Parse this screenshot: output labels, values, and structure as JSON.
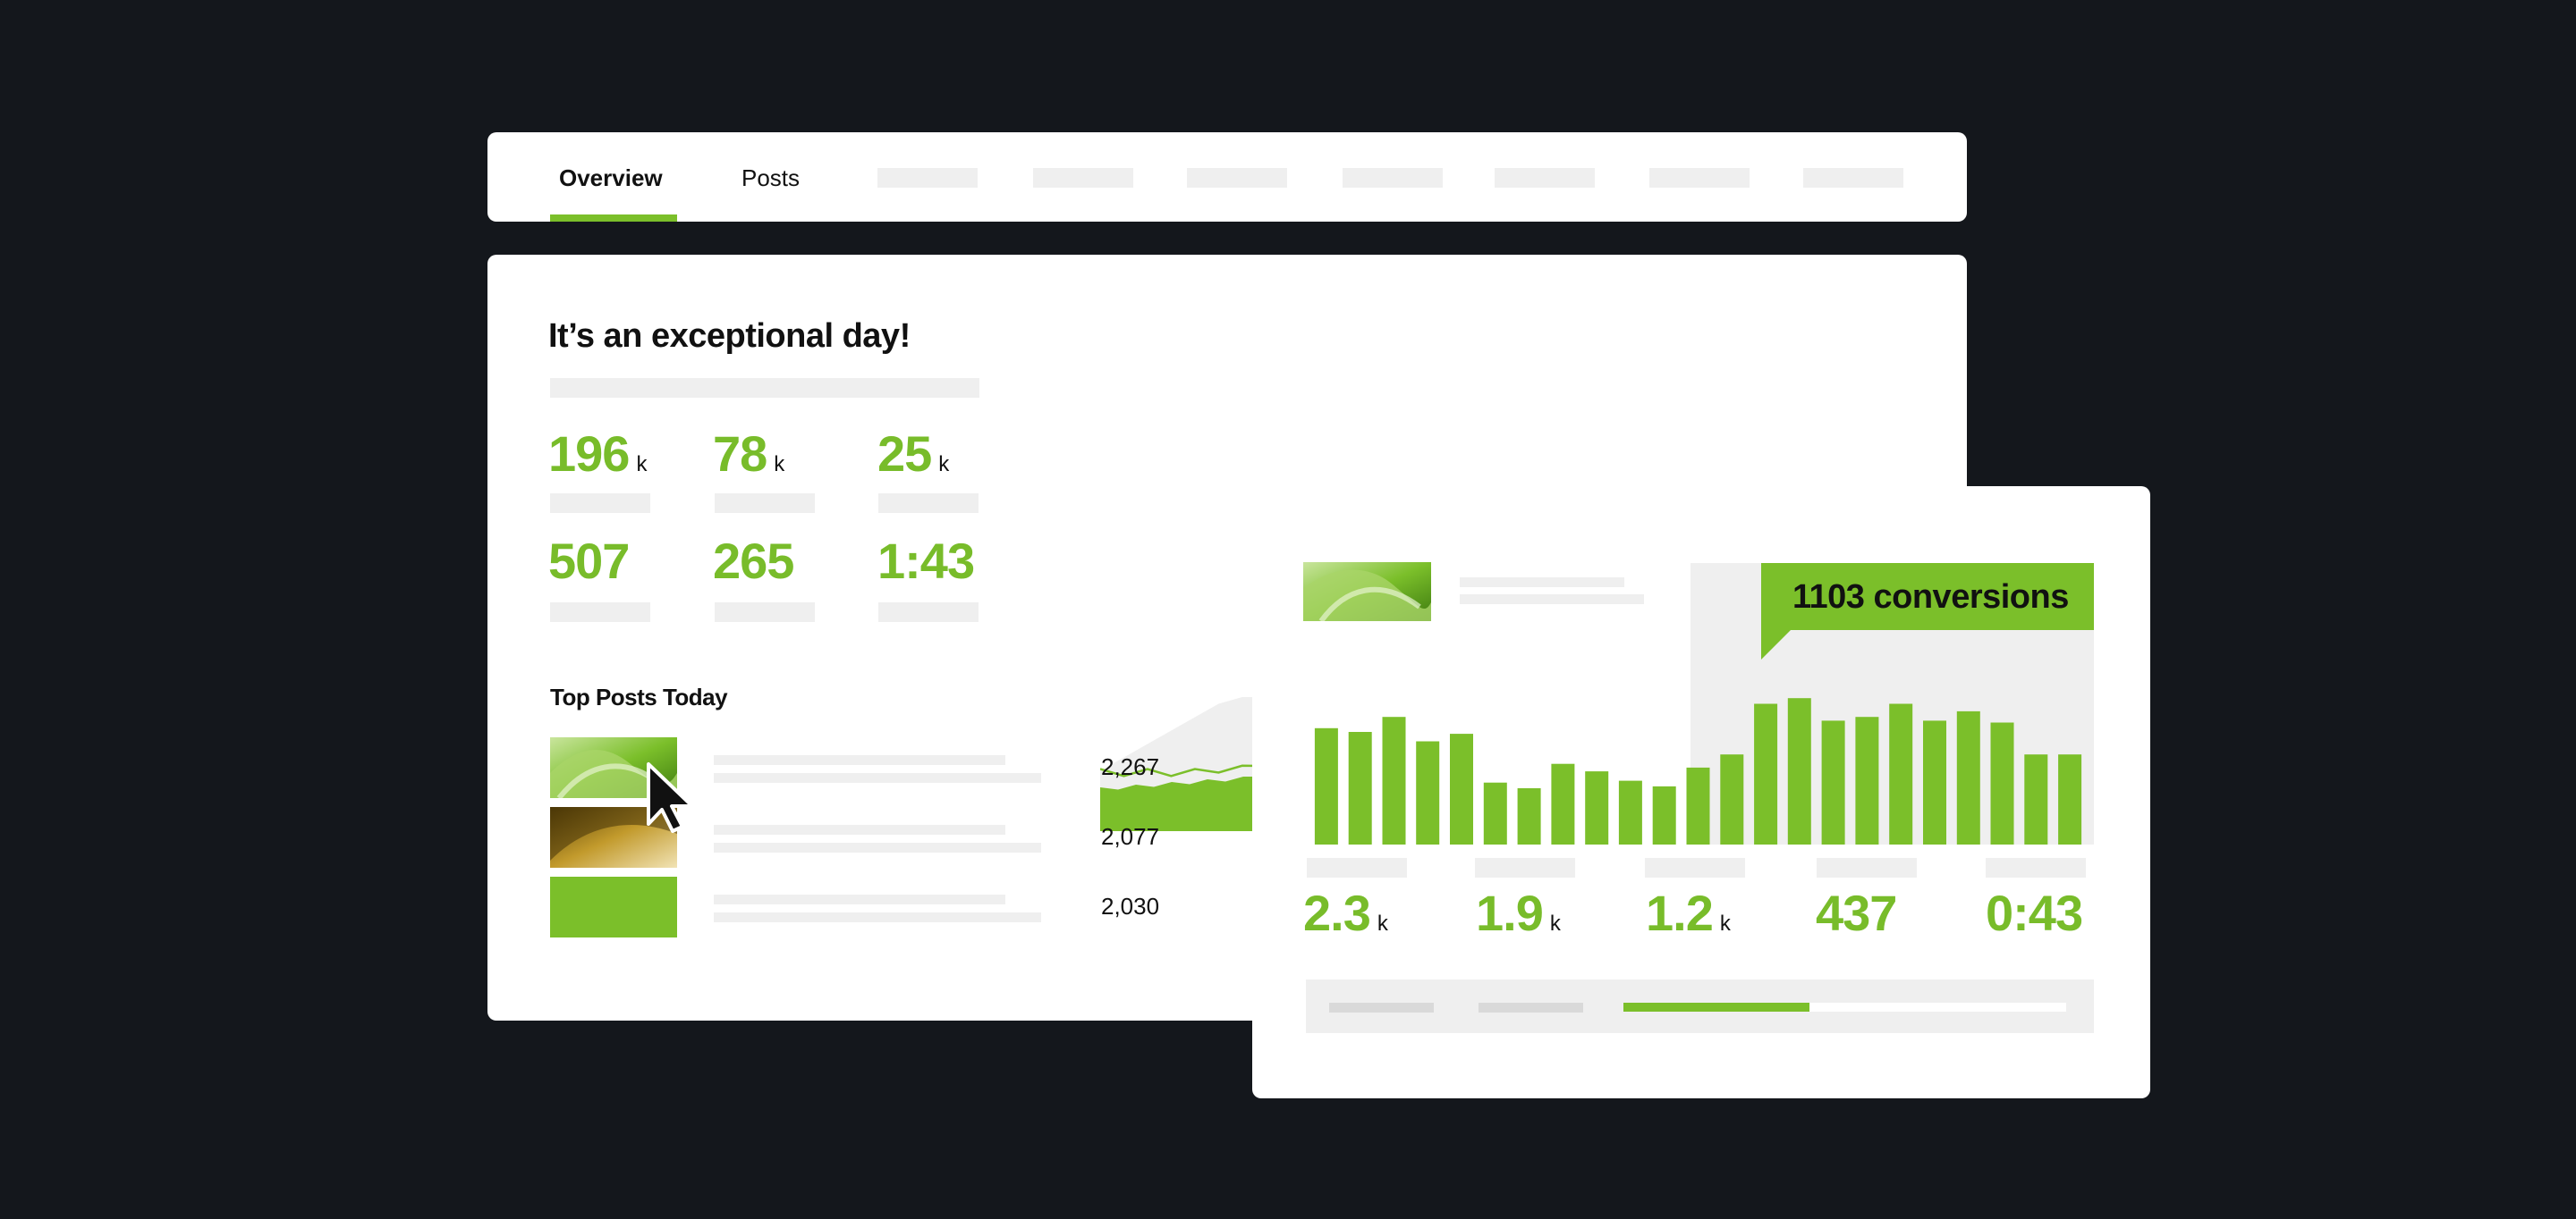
{
  "tabs": [
    {
      "label": "Overview",
      "active": true
    },
    {
      "label": "Posts",
      "active": false
    }
  ],
  "overview": {
    "headline": "It’s an exceptional day!",
    "stats": [
      {
        "value": "196",
        "unit": "k"
      },
      {
        "value": "78",
        "unit": "k"
      },
      {
        "value": "25",
        "unit": "k"
      },
      {
        "value": "507",
        "unit": ""
      },
      {
        "value": "265",
        "unit": ""
      },
      {
        "value": "1:43",
        "unit": ""
      }
    ]
  },
  "top_posts": {
    "title": "Top Posts Today",
    "items": [
      {
        "value": "2,267"
      },
      {
        "value": "2,077"
      },
      {
        "value": "2,030"
      }
    ]
  },
  "conversions_panel": {
    "callout": "1103 conversions",
    "stats": [
      {
        "value": "2.3",
        "unit": "k"
      },
      {
        "value": "1.9",
        "unit": "k"
      },
      {
        "value": "1.2",
        "unit": "k"
      },
      {
        "value": "437",
        "unit": ""
      },
      {
        "value": "0:43",
        "unit": ""
      }
    ],
    "progress_fraction": 0.42
  },
  "chart_data": [
    {
      "type": "area",
      "series": [
        {
          "values": [
            18,
            17,
            18,
            17,
            18,
            18,
            19,
            20,
            21,
            22,
            23,
            25,
            28,
            32,
            37,
            43,
            50,
            57,
            64,
            69,
            72,
            74,
            73,
            71,
            70,
            70,
            68,
            66,
            64,
            61,
            58,
            57,
            56,
            54,
            52
          ]
        },
        {
          "values": [
            18,
            22,
            26,
            30,
            34,
            38,
            40,
            40,
            38,
            34,
            30,
            26,
            24,
            22,
            20,
            19,
            20,
            24,
            30,
            36,
            42,
            48,
            53,
            57,
            60,
            62,
            63,
            62,
            60,
            56,
            52,
            49,
            46,
            44,
            43
          ]
        }
      ]
    },
    {
      "type": "bar",
      "values": [
        62,
        60,
        68,
        55,
        59,
        33,
        30,
        43,
        39,
        34,
        31,
        41,
        48,
        75,
        78,
        66,
        68,
        75,
        66,
        71,
        65,
        48,
        48
      ],
      "ylim": [
        0,
        100
      ]
    }
  ],
  "colors": {
    "accent": "#7bbf2a",
    "accent_text": "#78bc2a",
    "background": "#14171c",
    "placeholder": "#efefef"
  },
  "icons": {
    "cursor": "pointer-cursor-icon"
  }
}
